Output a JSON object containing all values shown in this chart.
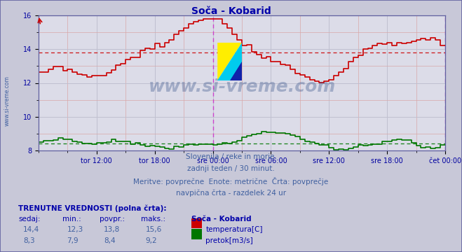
{
  "title": "Soča - Kobarid",
  "title_color": "#0000aa",
  "bg_color": "#c8c8d8",
  "plot_bg_color": "#dcdce8",
  "grid_color_minor": "#d0a0a0",
  "grid_color_major": "#c0c0d0",
  "xlabel_ticks": [
    "tor 12:00",
    "tor 18:00",
    "sre 00:00",
    "sre 06:00",
    "sre 12:00",
    "sre 18:00",
    "čet 00:00"
  ],
  "tick_hours": [
    6,
    12,
    18,
    24,
    30,
    36,
    42
  ],
  "total_hours": 42.0,
  "ylim": [
    8.0,
    16.0
  ],
  "yticks": [
    8,
    10,
    12,
    14,
    16
  ],
  "temp_avg": 13.8,
  "flow_avg": 8.4,
  "vline1_hour": 18,
  "vline2_hour": 42,
  "watermark": "www.si-vreme.com",
  "subtitle1": "Slovenija / reke in morje.",
  "subtitle2": "zadnji teden / 30 minut.",
  "subtitle3": "Meritve: povprečne  Enote: metrične  Črta: povprečje",
  "subtitle4": "navpična črta - razdelek 24 ur",
  "footer_bold": "TRENUTNE VREDNOSTI (polna črta):",
  "footer_headers": [
    "sedaj:",
    "min.:",
    "povpr.:",
    "maks.:",
    "Soča - Kobarid"
  ],
  "temp_values": [
    "14,4",
    "12,3",
    "13,8",
    "15,6"
  ],
  "flow_values": [
    "8,3",
    "7,9",
    "8,4",
    "9,2"
  ],
  "legend_temp": "temperatura[C]",
  "legend_flow": "pretok[m3/s]",
  "temp_color": "#cc0000",
  "flow_color": "#007700",
  "sidebar_text": "www.si-vreme.com",
  "sidebar_color": "#4060a0",
  "vline_color": "#cc44cc",
  "spine_color": "#6060a0",
  "tick_label_color": "#0000a0",
  "text_color": "#4060a0",
  "footer_color": "#0000aa",
  "value_color": "#4060a0"
}
